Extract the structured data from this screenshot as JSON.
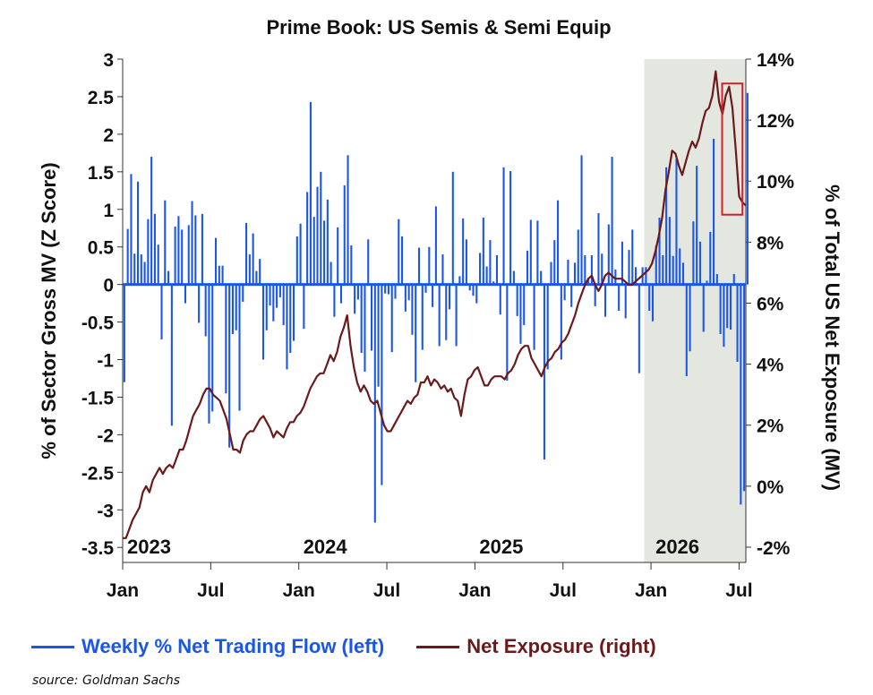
{
  "chart_data": {
    "type": "bar+line",
    "title": "Prime Book: US Semis & Semi Equip",
    "source": "source: Goldman Sachs",
    "ylabel_left": "% of Sector Gross MV (Z Score)",
    "ylabel_right": "% of Total US Net Exposure (MV)",
    "ylim_left": [
      -3.7,
      3
    ],
    "ylim_right": [
      -2.5,
      14
    ],
    "yticks_left": [
      "3",
      "2.5",
      "2",
      "1.5",
      "1",
      "0.5",
      "0",
      "-0.5",
      "-1",
      "-1.5",
      "-2",
      "-2.5",
      "-3",
      "-3.5"
    ],
    "yticks_right": [
      "14%",
      "12%",
      "10%",
      "8%",
      "6%",
      "4%",
      "2%",
      "0%",
      "-2%"
    ],
    "x_tick_labels": [
      "Jan",
      "Jul",
      "Jan",
      "Jul",
      "Jan",
      "Jul",
      "Jan",
      "Jul"
    ],
    "year_labels": [
      "2023",
      "2024",
      "2025",
      "2026"
    ],
    "x_range_weeks": [
      0,
      184
    ],
    "shaded_region_weeks": [
      154,
      184
    ],
    "highlight_box_weeks": [
      177,
      183
    ],
    "highlight_box_right": [
      8.9,
      13.2
    ],
    "legend": [
      {
        "name": "Weekly % Net Trading Flow (left)",
        "color": "#1a56e8"
      },
      {
        "name": "Net Exposure (right)",
        "color": "#6b1a1a"
      }
    ],
    "series": [
      {
        "name": "Weekly % Net Trading Flow (left)",
        "kind": "bar",
        "color": "#1a56e8",
        "values": [
          -1.3,
          0.74,
          1.47,
          0.41,
          1.37,
          0.4,
          0.3,
          0.87,
          1.7,
          0.94,
          0.53,
          -0.73,
          1.12,
          0.18,
          -1.88,
          0.77,
          0.91,
          0.73,
          -0.25,
          0.79,
          1.11,
          0.92,
          -0.51,
          0.94,
          -0.69,
          -1.85,
          -1.69,
          0.62,
          0.25,
          0.25,
          -1.45,
          -2.17,
          -0.66,
          -0.61,
          -1.68,
          -0.23,
          0.82,
          0.4,
          0.68,
          0.18,
          0.34,
          -1.0,
          -0.61,
          -0.28,
          -0.49,
          -0.31,
          -0.17,
          -0.54,
          -1.13,
          -0.91,
          -0.75,
          0.64,
          0.81,
          -0.59,
          1.23,
          2.43,
          0.9,
          1.3,
          1.5,
          0.85,
          1.13,
          0.3,
          -0.43,
          0.76,
          -0.25,
          1.32,
          1.72,
          0.52,
          -0.39,
          -0.2,
          -0.91,
          -1.16,
          0.6,
          -0.88,
          -3.17,
          -1.36,
          -2.67,
          -0.12,
          -0.13,
          -0.9,
          -0.19,
          0.87,
          0.64,
          -0.36,
          -0.21,
          -0.67,
          -1.3,
          0.49,
          -0.87,
          -0.11,
          0.5,
          -0.3,
          1.04,
          -0.82,
          0.4,
          -0.74,
          -0.33,
          1.5,
          -0.82,
          0.11,
          0.88,
          0.6,
          -0.08,
          -0.15,
          -0.25,
          0.42,
          0.89,
          0.24,
          0.59,
          0.04,
          0.39,
          -0.4,
          1.56,
          -1.28,
          1.51,
          0.18,
          -0.42,
          -0.79,
          -0.54,
          0.45,
          0.86,
          -0.87,
          0.85,
          0.18,
          -2.33,
          -1.13,
          0.3,
          0.59,
          1.12,
          -1.0,
          -0.21,
          0.33,
          -0.3,
          0.29,
          0.73,
          1.72,
          0.39,
          0.09,
          0.39,
          -0.29,
          0.95,
          0.41,
          -0.43,
          0.8,
          1.7,
          0.2,
          -0.35,
          0.57,
          -0.45,
          0.46,
          0.73,
          0.23,
          -1.18,
          0.23,
          0.23,
          -0.35,
          -0.49,
          0.52,
          0.89,
          0.39,
          1.56,
          0.9,
          0.38,
          1.67,
          0.48,
          0.29,
          -1.22,
          -0.89,
          0.84,
          1.58,
          0.57,
          -0.63,
          0.05,
          0.7,
          1.94,
          0.14,
          -0.66,
          -0.83,
          -0.58,
          -0.6,
          0.14,
          -1.03,
          -2.93,
          -2.75,
          2.55
        ]
      },
      {
        "name": "Net Exposure (right)",
        "kind": "line",
        "color": "#6b1a1a",
        "axis": "right",
        "values": [
          -1.7,
          -1.7,
          -1.4,
          -1.1,
          -0.9,
          -0.7,
          -0.2,
          0.0,
          -0.2,
          0.2,
          0.4,
          0.6,
          0.4,
          0.6,
          0.7,
          0.6,
          0.9,
          1.2,
          1.2,
          1.5,
          1.9,
          2.3,
          2.5,
          2.7,
          3.0,
          3.2,
          3.2,
          3.0,
          2.9,
          2.8,
          2.5,
          2.2,
          1.7,
          1.2,
          1.2,
          1.1,
          1.5,
          1.7,
          1.8,
          1.8,
          2.0,
          2.2,
          2.3,
          2.1,
          1.9,
          1.6,
          1.8,
          1.7,
          1.6,
          1.9,
          2.1,
          2.1,
          2.3,
          2.4,
          2.6,
          2.9,
          3.2,
          3.4,
          3.6,
          3.7,
          3.7,
          4.0,
          4.3,
          4.1,
          4.4,
          4.9,
          5.2,
          5.6,
          4.6,
          3.9,
          3.4,
          3.1,
          3.3,
          3.1,
          2.8,
          2.7,
          2.8,
          2.4,
          2.0,
          1.8,
          1.8,
          2.0,
          2.2,
          2.4,
          2.6,
          2.8,
          2.7,
          2.9,
          3.0,
          3.4,
          3.4,
          3.6,
          3.3,
          3.5,
          3.4,
          3.2,
          3.3,
          3.1,
          3.2,
          2.9,
          2.8,
          2.3,
          3.0,
          3.5,
          3.6,
          3.8,
          3.9,
          3.6,
          3.3,
          3.3,
          3.5,
          3.6,
          3.6,
          3.6,
          3.5,
          3.7,
          3.8,
          4.0,
          4.3,
          4.5,
          4.6,
          4.6,
          4.2,
          4.0,
          3.8,
          3.6,
          3.9,
          4.1,
          4.2,
          4.4,
          4.5,
          4.7,
          4.8,
          5.0,
          5.3,
          5.6,
          6.0,
          6.3,
          6.6,
          6.8,
          6.9,
          6.6,
          6.4,
          6.6,
          6.9,
          7.0,
          6.9,
          6.8,
          6.8,
          6.8,
          6.7,
          6.6,
          6.6,
          6.7,
          6.8,
          6.9,
          7.0,
          7.1,
          7.3,
          7.7,
          8.2,
          8.8,
          9.7,
          10.3,
          11.0,
          10.9,
          10.5,
          10.2,
          10.6,
          11.0,
          11.3,
          11.1,
          11.4,
          11.9,
          12.3,
          12.4,
          12.8,
          13.6,
          12.6,
          12.2,
          12.8,
          13.1,
          12.4,
          11.0,
          9.5,
          9.3,
          9.2
        ]
      }
    ]
  }
}
